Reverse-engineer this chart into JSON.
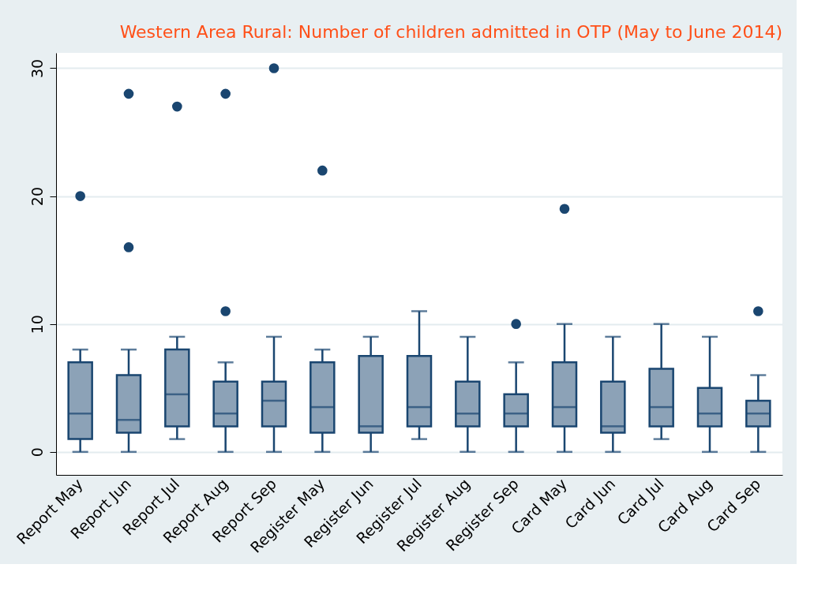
{
  "chart_data": {
    "type": "box",
    "title": "Western Area Rural: Number of children admitted in OTP (May to June 2014)",
    "categories": [
      "Report May",
      "Report Jun",
      "Report Jul",
      "Report Aug",
      "Report Sep",
      "Register May",
      "Register Jun",
      "Register Jul",
      "Register Aug",
      "Register Sep",
      "Card May",
      "Card Jun",
      "Card Jul",
      "Card Aug",
      "Card Sep"
    ],
    "series": [
      {
        "color": "#1a4670",
        "boxes": [
          {
            "low": 0,
            "q1": 1,
            "median": 3,
            "q3": 7,
            "high": 8,
            "outliers": [
              20
            ]
          },
          {
            "low": 0,
            "q1": 1.5,
            "median": 2.5,
            "q3": 6,
            "high": 8,
            "outliers": [
              28,
              16
            ]
          },
          {
            "low": 1,
            "q1": 2,
            "median": 4.5,
            "q3": 8,
            "high": 9,
            "outliers": [
              27
            ]
          },
          {
            "low": 0,
            "q1": 2,
            "median": 3,
            "q3": 5.5,
            "high": 7,
            "outliers": [
              28,
              11
            ]
          },
          {
            "low": 0,
            "q1": 2,
            "median": 4,
            "q3": 5.5,
            "high": 9,
            "outliers": [
              30
            ]
          },
          {
            "low": 0,
            "q1": 1.5,
            "median": 3.5,
            "q3": 7,
            "high": 8,
            "outliers": [
              22
            ]
          },
          {
            "low": 0,
            "q1": 1.5,
            "median": 2,
            "q3": 7.5,
            "high": 9
          },
          {
            "low": 1,
            "q1": 2,
            "median": 3.5,
            "q3": 7.5,
            "high": 11
          },
          {
            "low": 0,
            "q1": 2,
            "median": 3,
            "q3": 5.5,
            "high": 9
          },
          {
            "low": 0,
            "q1": 2,
            "median": 3,
            "q3": 4.5,
            "high": 7,
            "outliers": [
              10
            ]
          },
          {
            "low": 0,
            "q1": 2,
            "median": 3.5,
            "q3": 7,
            "high": 10,
            "outliers": [
              19
            ]
          },
          {
            "low": 0,
            "q1": 1.5,
            "median": 2,
            "q3": 5.5,
            "high": 9
          },
          {
            "low": 1,
            "q1": 2,
            "median": 3.5,
            "q3": 6.5,
            "high": 10
          },
          {
            "low": 0,
            "q1": 2,
            "median": 3,
            "q3": 5,
            "high": 9
          },
          {
            "low": 0,
            "q1": 2,
            "median": 3,
            "q3": 4,
            "high": 6,
            "outliers": [
              11
            ]
          }
        ]
      }
    ],
    "ylim": [
      -1.8,
      31.2
    ],
    "yticks": [
      0,
      10,
      20,
      30
    ],
    "grid": "y",
    "marker": "circle"
  }
}
